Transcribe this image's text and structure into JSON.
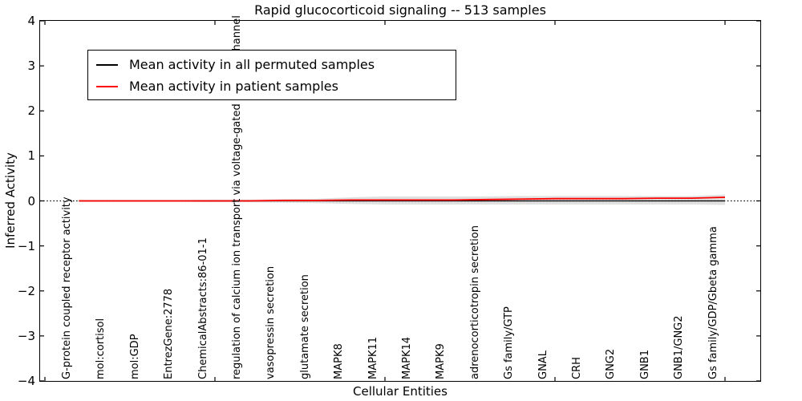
{
  "chart_data": {
    "type": "line",
    "title": "Rapid glucocorticoid signaling -- 513 samples",
    "xlabel": "Cellular Entities",
    "ylabel": "Inferred Activity",
    "ylim": [
      -4,
      4
    ],
    "ytick_values": [
      4,
      3,
      2,
      1,
      0,
      -1,
      -2,
      -3,
      -4
    ],
    "ytick_labels": [
      "4",
      "3",
      "2",
      "1",
      "0",
      "−1",
      "−2",
      "−3",
      "−4"
    ],
    "xtick_values": [
      0,
      5,
      10,
      15,
      20
    ],
    "grid": false,
    "legend_position": "upper left",
    "categories": [
      "G-protein coupled receptor activity",
      "mol:cortisol",
      "mol:GDP",
      "EntrezGene:2778",
      "ChemicalAbstracts:86-01-1",
      "regulation of calcium ion transport via voltage-gated calcium channel",
      "vasopressin secretion",
      "glutamate secretion",
      "MAPK8",
      "MAPK11",
      "MAPK14",
      "MAPK9",
      "adrenocorticotropin secretion",
      "Gs family/GTP",
      "GNAL",
      "CRH",
      "GNG2",
      "GNB1",
      "GNB1/GNG2",
      "Gs family/GDP/Gbeta gamma"
    ],
    "series": [
      {
        "name": "Mean activity in all permuted samples",
        "color": "#000000",
        "style": "solid",
        "values": [
          0,
          0,
          0,
          0,
          0,
          0,
          0,
          0,
          0,
          0,
          0,
          0,
          0,
          0,
          0,
          0,
          0,
          0,
          0,
          0
        ]
      },
      {
        "name": "Mean activity in patient samples",
        "color": "#ff0000",
        "style": "solid",
        "values": [
          0,
          0,
          0,
          0,
          0,
          0,
          0.01,
          0.01,
          0.02,
          0.02,
          0.02,
          0.02,
          0.03,
          0.04,
          0.05,
          0.05,
          0.05,
          0.06,
          0.06,
          0.08
        ]
      }
    ],
    "band": {
      "name": "permuted-samples-spread-band",
      "color": "#cfcfcf",
      "upper": [
        0.02,
        0.02,
        0.02,
        0.02,
        0.03,
        0.03,
        0.04,
        0.05,
        0.08,
        0.1,
        0.1,
        0.1,
        0.1,
        0.11,
        0.11,
        0.11,
        0.11,
        0.11,
        0.11,
        0.14
      ],
      "lower": [
        -0.02,
        -0.02,
        -0.02,
        -0.02,
        -0.03,
        -0.03,
        -0.04,
        -0.05,
        -0.07,
        -0.08,
        -0.08,
        -0.08,
        -0.08,
        -0.08,
        -0.08,
        -0.08,
        -0.08,
        -0.08,
        -0.08,
        -0.09
      ]
    },
    "zero_line": {
      "value": 0,
      "color": "#000000",
      "style": "dotted"
    }
  }
}
